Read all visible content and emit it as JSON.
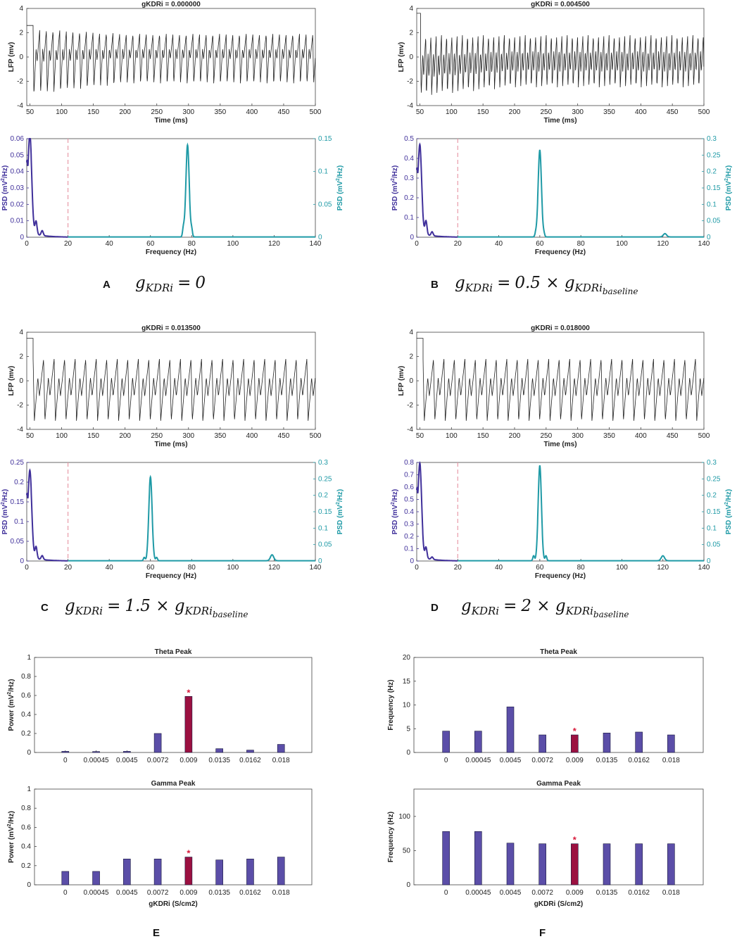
{
  "colors": {
    "lfp": "#222222",
    "theta_psd": "#3f2f9a",
    "gamma_psd": "#1f9aa6",
    "cutoff": "#e89aa8",
    "bar": "#5b4ea8",
    "bar_highlight": "#9b1040",
    "star": "#d81b3c"
  },
  "panel_labels": [
    "A",
    "B",
    "C",
    "D",
    "E",
    "F"
  ],
  "equations": [
    {
      "lhs": "g",
      "lhs_sub": "KDRi",
      "eq": "=",
      "rhs": "0"
    },
    {
      "lhs": "g",
      "lhs_sub": "KDRi",
      "eq": "=",
      "rhs": "0.5 × g",
      "rhs_sub": "KDRi",
      "rhs_subsub": "baseline"
    },
    {
      "lhs": "g",
      "lhs_sub": "KDRi",
      "eq": "=",
      "rhs": "1.5 × g",
      "rhs_sub": "KDRi",
      "rhs_subsub": "baseline"
    },
    {
      "lhs": "g",
      "lhs_sub": "KDRi",
      "eq": "=",
      "rhs": "2 × g",
      "rhs_sub": "KDRi",
      "rhs_subsub": "baseline"
    }
  ],
  "chart_data": [
    {
      "type": "line",
      "id": "lfp-a",
      "title": "gKDRi = 0.000000",
      "xlabel": "Time (ms)",
      "ylabel": "LFP (mv)",
      "xlim": [
        45,
        500
      ],
      "ylim": [
        -4,
        4
      ],
      "xticks": [
        50,
        100,
        150,
        200,
        250,
        300,
        350,
        400,
        450,
        500
      ],
      "yticks": [
        -4,
        -2,
        0,
        2,
        4
      ],
      "series": [
        {
          "name": "LFP",
          "onset": 55,
          "hold": 2.6,
          "period": 10.5,
          "max": 2.3,
          "min": -3.1,
          "min_late": -2.2,
          "max_late": 1.9,
          "secondary": 0.2
        }
      ]
    },
    {
      "type": "line",
      "id": "psd-a",
      "xlabel": "Frequency (Hz)",
      "ylabel_left": "PSD (mV2/Hz)",
      "ylabel_right": "PSD (mV2/Hz)",
      "xlim": [
        0,
        140
      ],
      "ylim_left": [
        0,
        0.06
      ],
      "ylim_right": [
        0,
        0.15
      ],
      "xticks": [
        0,
        20,
        40,
        60,
        80,
        100,
        120,
        140
      ],
      "yticks_left": [
        0,
        0.01,
        0.02,
        0.03,
        0.04,
        0.05,
        0.06
      ],
      "yticks_right": [
        0,
        0.05,
        0.1,
        0.15
      ],
      "cutoff": 20,
      "theta": {
        "peak": 0.06,
        "peak_freq": 1.5,
        "bumps": [
          [
            4.5,
            0.008
          ],
          [
            7.5,
            0.003
          ]
        ]
      },
      "gamma": {
        "peaks": [
          [
            78,
            0.14
          ]
        ],
        "side": [
          [
            76,
            0.013
          ],
          [
            80,
            0.01
          ]
        ]
      }
    },
    {
      "type": "line",
      "id": "lfp-b",
      "title": "gKDRi = 0.004500",
      "xlabel": "Time (ms)",
      "ylabel": "LFP (mv)",
      "xlim": [
        45,
        500
      ],
      "ylim": [
        -4,
        4
      ],
      "xticks": [
        50,
        100,
        150,
        200,
        250,
        300,
        350,
        400,
        450,
        500
      ],
      "yticks": [
        -4,
        -2,
        0,
        2,
        4
      ],
      "series": [
        {
          "name": "LFP",
          "onset": 51,
          "hold": 3.6,
          "period": 8.3,
          "max": 1.8,
          "min": -3.2,
          "min_late": -2.5,
          "max_late": 1.8,
          "secondary": 0.4
        }
      ]
    },
    {
      "type": "line",
      "id": "psd-b",
      "xlabel": "Frequency (Hz)",
      "ylabel_left": "PSD (mV2/Hz)",
      "ylabel_right": "PSD (mV2/Hz)",
      "xlim": [
        0,
        140
      ],
      "ylim_left": [
        0,
        0.5
      ],
      "ylim_right": [
        0,
        0.3
      ],
      "xticks": [
        0,
        20,
        40,
        60,
        80,
        100,
        120,
        140
      ],
      "yticks_left": [
        0,
        0.1,
        0.2,
        0.3,
        0.4,
        0.5
      ],
      "yticks_right": [
        0,
        0.05,
        0.1,
        0.15,
        0.2,
        0.25,
        0.3
      ],
      "cutoff": 20,
      "theta": {
        "peak": 0.45,
        "peak_freq": 1.5,
        "bumps": [
          [
            4.5,
            0.07
          ],
          [
            7.5,
            0.02
          ]
        ]
      },
      "gamma": {
        "peaks": [
          [
            60,
            0.265
          ],
          [
            121,
            0.01
          ]
        ],
        "side": [
          [
            58,
            0.01
          ],
          [
            62,
            0.008
          ]
        ]
      }
    },
    {
      "type": "line",
      "id": "lfp-c",
      "title": "gKDRi = 0.013500",
      "xlabel": "Time (ms)",
      "ylabel": "LFP (mv)",
      "xlim": [
        45,
        500
      ],
      "ylim": [
        -4,
        4
      ],
      "xticks": [
        50,
        100,
        150,
        200,
        250,
        300,
        350,
        400,
        450,
        500
      ],
      "yticks": [
        -4,
        -2,
        0,
        2,
        4
      ],
      "series": [
        {
          "name": "LFP",
          "onset": 55,
          "hold": 3.5,
          "period": 16.6,
          "max": 1.8,
          "min": -3.3,
          "min_late": -3.3,
          "max_late": 1.8,
          "secondary": 0.3
        }
      ]
    },
    {
      "type": "line",
      "id": "psd-c",
      "xlabel": "Frequency (Hz)",
      "ylabel_left": "PSD (mV2/Hz)",
      "ylabel_right": "PSD (mV2/Hz)",
      "xlim": [
        0,
        140
      ],
      "ylim_left": [
        0,
        0.25
      ],
      "ylim_right": [
        0,
        0.3
      ],
      "xticks": [
        0,
        20,
        40,
        60,
        80,
        100,
        120,
        140
      ],
      "yticks_left": [
        0,
        0.05,
        0.1,
        0.15,
        0.2,
        0.25
      ],
      "yticks_right": [
        0,
        0.05,
        0.1,
        0.15,
        0.2,
        0.25,
        0.3
      ],
      "cutoff": 20,
      "theta": {
        "peak": 0.22,
        "peak_freq": 1.5,
        "bumps": [
          [
            4.5,
            0.03
          ],
          [
            7.5,
            0.01
          ]
        ]
      },
      "gamma": {
        "peaks": [
          [
            60,
            0.255
          ],
          [
            119,
            0.018
          ]
        ],
        "side": [
          [
            57,
            0.01
          ],
          [
            63,
            0.01
          ]
        ]
      }
    },
    {
      "type": "line",
      "id": "lfp-d",
      "title": "gKDRi = 0.018000",
      "xlabel": "Time (ms)",
      "ylabel": "LFP (mv)",
      "xlim": [
        45,
        500
      ],
      "ylim": [
        -4,
        4
      ],
      "xticks": [
        50,
        100,
        150,
        200,
        250,
        300,
        350,
        400,
        450,
        500
      ],
      "yticks": [
        -4,
        -2,
        0,
        2,
        4
      ],
      "series": [
        {
          "name": "LFP",
          "onset": 55,
          "hold": 3.5,
          "period": 16.6,
          "max": 1.8,
          "min": -3.3,
          "min_late": -3.3,
          "max_late": 1.8,
          "secondary": 0.3
        }
      ]
    },
    {
      "type": "line",
      "id": "psd-d",
      "xlabel": "Frequency (Hz)",
      "ylabel_left": "PSD (mV2/Hz)",
      "ylabel_right": "PSD (mV2/Hz)",
      "xlim": [
        0,
        140
      ],
      "ylim_left": [
        0,
        0.8
      ],
      "ylim_right": [
        0,
        0.3
      ],
      "xticks": [
        0,
        20,
        40,
        60,
        80,
        100,
        120,
        140
      ],
      "yticks_left": [
        0,
        0.1,
        0.2,
        0.3,
        0.4,
        0.5,
        0.6,
        0.7,
        0.8
      ],
      "yticks_right": [
        0,
        0.05,
        0.1,
        0.15,
        0.2,
        0.25,
        0.3
      ],
      "cutoff": 20,
      "theta": {
        "peak": 0.76,
        "peak_freq": 1.5,
        "bumps": [
          [
            4.5,
            0.09
          ],
          [
            7.5,
            0.02
          ]
        ]
      },
      "gamma": {
        "peaks": [
          [
            60,
            0.29
          ],
          [
            120,
            0.015
          ]
        ],
        "side": [
          [
            57,
            0.015
          ],
          [
            63,
            0.015
          ]
        ]
      }
    },
    {
      "type": "bar",
      "id": "bar-e1",
      "title": "Theta Peak",
      "ylabel": "Power (mV2/Hz)",
      "xlabel": "",
      "categories": [
        "0",
        "0.00045",
        "0.0045",
        "0.0072",
        "0.009",
        "0.0135",
        "0.0162",
        "0.018"
      ],
      "values": [
        0.012,
        0.01,
        0.012,
        0.2,
        0.59,
        0.04,
        0.025,
        0.085
      ],
      "highlight": 4,
      "ylim": [
        0,
        1
      ],
      "yticks": [
        0,
        0.2,
        0.4,
        0.6,
        0.8,
        1
      ]
    },
    {
      "type": "bar",
      "id": "bar-f1",
      "title": "Theta Peak",
      "ylabel": "Frequency (Hz)",
      "xlabel": "",
      "categories": [
        "0",
        "0.00045",
        "0.0045",
        "0.0072",
        "0.009",
        "0.0135",
        "0.0162",
        "0.018"
      ],
      "values": [
        4.5,
        4.5,
        9.6,
        3.7,
        3.7,
        4.1,
        4.3,
        3.7
      ],
      "highlight": 4,
      "ylim": [
        0,
        20
      ],
      "yticks": [
        0,
        5,
        10,
        15,
        20
      ]
    },
    {
      "type": "bar",
      "id": "bar-e2",
      "title": "Gamma Peak",
      "ylabel": "Power (mV2/Hz)",
      "xlabel": "gKDRi (S/cm2)",
      "categories": [
        "0",
        "0.00045",
        "0.0045",
        "0.0072",
        "0.009",
        "0.0135",
        "0.0162",
        "0.018"
      ],
      "values": [
        0.14,
        0.14,
        0.27,
        0.27,
        0.29,
        0.26,
        0.27,
        0.29
      ],
      "highlight": 4,
      "ylim": [
        0,
        1
      ],
      "yticks": [
        0,
        0.2,
        0.4,
        0.6,
        0.8,
        1
      ]
    },
    {
      "type": "bar",
      "id": "bar-f2",
      "title": "Gamma Peak",
      "ylabel": "Frequency (Hz)",
      "xlabel": "gKDRi (S/cm2)",
      "categories": [
        "0",
        "0.00045",
        "0.0045",
        "0.0072",
        "0.009",
        "0.0135",
        "0.0162",
        "0.018"
      ],
      "values": [
        78,
        78,
        61,
        60,
        60,
        60,
        60,
        60
      ],
      "highlight": 4,
      "ylim": [
        0,
        140
      ],
      "yticks": [
        0,
        50,
        100
      ]
    }
  ]
}
